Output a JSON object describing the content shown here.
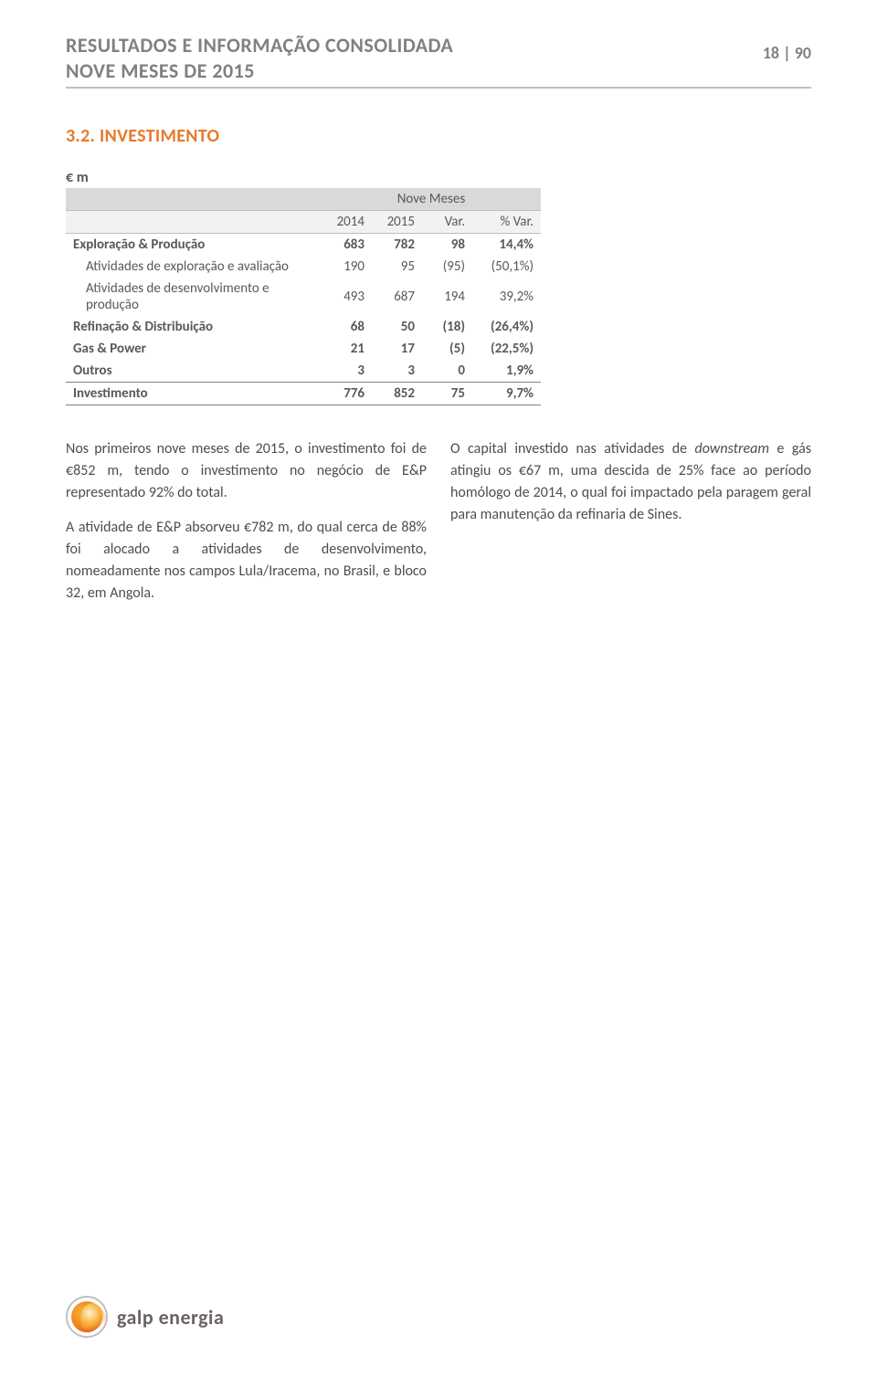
{
  "header": {
    "line1": "RESULTADOS E INFORMAÇÃO CONSOLIDADA",
    "line2": "NOVE MESES DE 2015",
    "page_number": "18 | 90"
  },
  "section": {
    "title": "3.2. INVESTIMENTO"
  },
  "table": {
    "currency": "€ m",
    "period_header": "Nove Meses",
    "columns": [
      "2014",
      "2015",
      "Var.",
      "% Var."
    ],
    "rows": [
      {
        "label": "Exploração & Produção",
        "class": "bold",
        "cells": [
          "683",
          "782",
          "98",
          "14,4%"
        ]
      },
      {
        "label": "Atividades de exploração e avaliação",
        "class": "sub",
        "cells": [
          "190",
          "95",
          "(95)",
          "(50,1%)"
        ]
      },
      {
        "label": "Atividades de desenvolvimento e produção",
        "class": "sub",
        "cells": [
          "493",
          "687",
          "194",
          "39,2%"
        ]
      },
      {
        "label": "Refinação & Distribuição",
        "class": "bold",
        "cells": [
          "68",
          "50",
          "(18)",
          "(26,4%)"
        ]
      },
      {
        "label": "Gas & Power",
        "class": "bold",
        "cells": [
          "21",
          "17",
          "(5)",
          "(22,5%)"
        ]
      },
      {
        "label": "Outros",
        "class": "bold",
        "cells": [
          "3",
          "3",
          "0",
          "1,9%"
        ]
      },
      {
        "label": "Investimento",
        "class": "total",
        "cells": [
          "776",
          "852",
          "75",
          "9,7%"
        ]
      }
    ]
  },
  "body": {
    "left": {
      "p1": "Nos primeiros nove meses de 2015, o investimento foi de €852 m, tendo o investimento no negócio de E&P representado 92% do total.",
      "p2": "A atividade de E&P absorveu €782 m, do qual cerca de 88% foi alocado a atividades de desenvolvimento, nomeadamente nos campos Lula/Iracema, no Brasil, e bloco 32, em Angola."
    },
    "right": {
      "p1_a": "O capital investido nas atividades de ",
      "p1_b": "downstream",
      "p1_c": " e gás atingiu os €67 m, uma descida de 25% face ao período homólogo de 2014, o qual foi impactado pela paragem geral para manutenção da refinaria de Sines."
    }
  },
  "footer": {
    "brand": "galp energia"
  },
  "colors": {
    "header_gray": "#808080",
    "rule_gray": "#bfbfbf",
    "accent_orange": "#e8792b",
    "th_bg_dark": "#d9d9d9",
    "th_bg_light": "#f2f2f2",
    "text": "#595959"
  }
}
